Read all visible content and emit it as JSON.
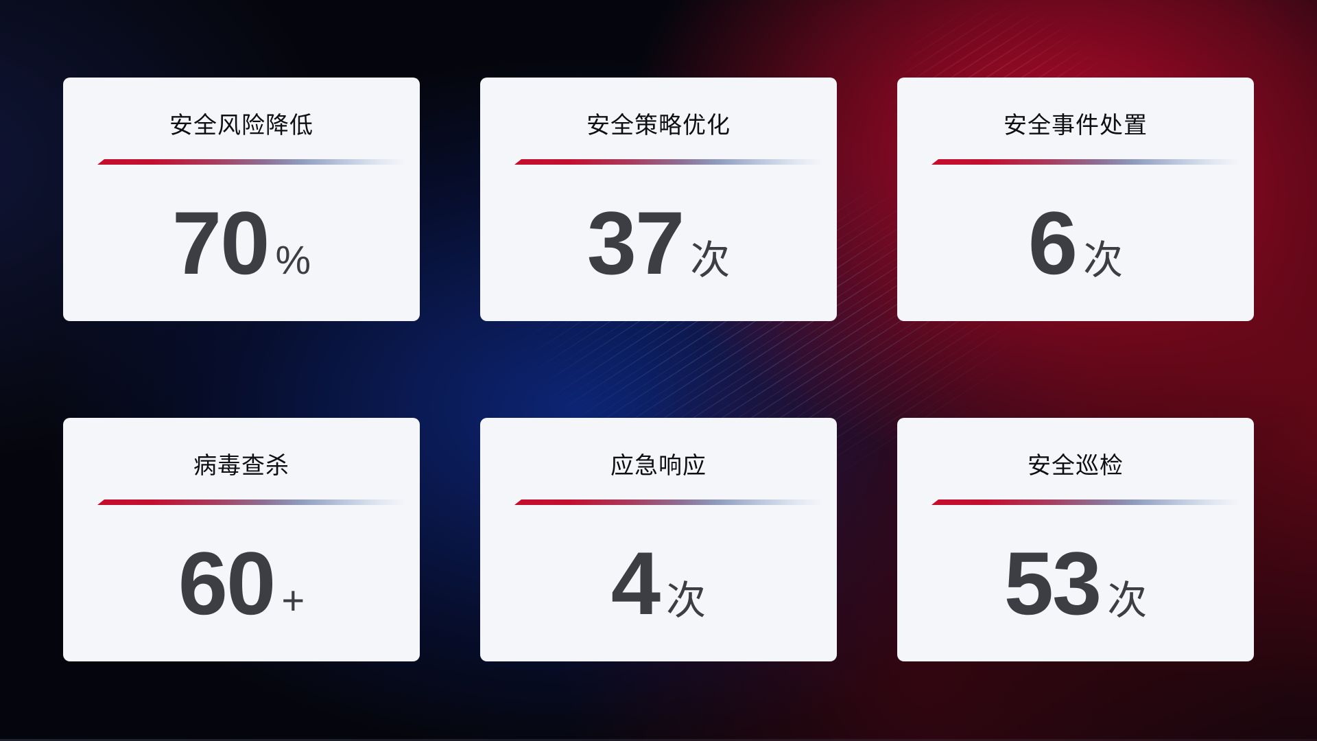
{
  "dashboard": {
    "cards": [
      {
        "title": "安全风险降低",
        "value": "70",
        "unit": "%"
      },
      {
        "title": "安全策略优化",
        "value": "37",
        "unit": "次"
      },
      {
        "title": "安全事件处置",
        "value": "6",
        "unit": "次"
      },
      {
        "title": "病毒查杀",
        "value": "60",
        "unit": "+"
      },
      {
        "title": "应急响应",
        "value": "4",
        "unit": "次"
      },
      {
        "title": "安全巡检",
        "value": "53",
        "unit": "次"
      }
    ],
    "colors": {
      "accent_red": "#c40e2e",
      "divider_blue_gray": "#8f9cbd",
      "card_background": "#f5f6f9",
      "title_text": "#0e0f12",
      "value_text": "#3d3e43",
      "background_dark": "#05060d",
      "background_blue_glow": "#0d267a",
      "background_red_glow": "#ba0a2c"
    }
  }
}
